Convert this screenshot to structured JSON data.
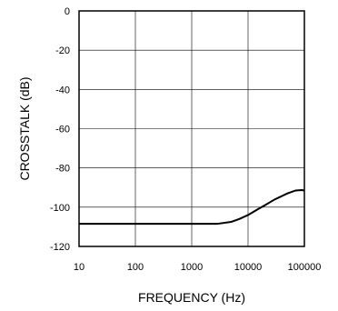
{
  "chart_data": {
    "type": "line",
    "title": "",
    "xlabel": "FREQUENCY (Hz)",
    "ylabel": "CROSSTALK (dB)",
    "xscale": "log",
    "xlim": [
      10,
      100000
    ],
    "ylim": [
      -120,
      0
    ],
    "grid": true,
    "x_ticks": [
      "10",
      "100",
      "1000",
      "10000",
      "100000"
    ],
    "y_ticks": [
      "0",
      "-20",
      "-40",
      "-60",
      "-80",
      "-100",
      "-120"
    ],
    "series": [
      {
        "x": [
          10,
          100,
          1000,
          2800,
          5000,
          7000,
          10000,
          15000,
          20000,
          30000,
          50000,
          70000,
          90000,
          100000
        ],
        "y": [
          -108.5,
          -108.5,
          -108.5,
          -108.5,
          -107.5,
          -106,
          -104,
          -101,
          -99,
          -96,
          -93,
          -91.5,
          -91.3,
          -91.5
        ]
      }
    ],
    "line_color": "#000000"
  }
}
